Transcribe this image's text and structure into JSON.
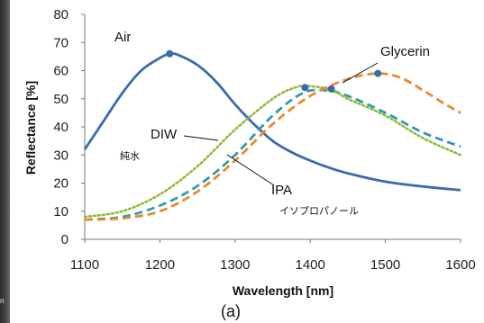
{
  "left_strip_text": "n",
  "chart_data": {
    "type": "line",
    "xlabel": "Wavelength [nm]",
    "ylabel": "Reflectance [%]",
    "xlim": [
      1100,
      1600
    ],
    "ylim": [
      0,
      80
    ],
    "x_ticks": [
      1100,
      1200,
      1300,
      1400,
      1500,
      1600
    ],
    "y_ticks": [
      0,
      10,
      20,
      30,
      40,
      50,
      60,
      70,
      80
    ],
    "grid": false,
    "legend": "none",
    "caption": "(a)",
    "series": [
      {
        "name": "Air",
        "color": "#3b6aae",
        "style": "solid",
        "x": [
          1100,
          1125,
          1150,
          1175,
          1200,
          1213,
          1225,
          1250,
          1275,
          1300,
          1325,
          1350,
          1375,
          1400,
          1425,
          1450,
          1500,
          1550,
          1600
        ],
        "y": [
          32,
          42,
          52,
          60,
          64.5,
          66,
          65.5,
          62,
          56,
          48,
          41,
          35,
          31,
          28,
          25.5,
          23.5,
          20.5,
          18.8,
          17.5
        ]
      },
      {
        "name": "DIW",
        "color": "#2e9bb5",
        "style": "dashed",
        "x": [
          1100,
          1150,
          1200,
          1250,
          1300,
          1350,
          1390,
          1420,
          1450,
          1500,
          1550,
          1600
        ],
        "y": [
          7,
          8,
          12,
          19,
          30,
          44,
          52,
          53,
          51,
          45,
          38,
          33
        ]
      },
      {
        "name": "IPA",
        "color": "#8fbc3a",
        "style": "dotted",
        "x": [
          1100,
          1150,
          1200,
          1250,
          1300,
          1350,
          1380,
          1400,
          1430,
          1450,
          1500,
          1550,
          1600
        ],
        "y": [
          8,
          10,
          16,
          26,
          39,
          50,
          54,
          54.5,
          53,
          50,
          44,
          36,
          30
        ]
      },
      {
        "name": "Glycerin",
        "color": "#e88a2e",
        "style": "dashed",
        "x": [
          1100,
          1150,
          1200,
          1250,
          1300,
          1350,
          1400,
          1450,
          1490,
          1520,
          1550,
          1580,
          1600
        ],
        "y": [
          7,
          7.5,
          10,
          17,
          28,
          41,
          51,
          57,
          59,
          57.5,
          53,
          48,
          45
        ]
      }
    ],
    "markers": [
      {
        "x": 1213,
        "y": 66,
        "color": "#3b6aae"
      },
      {
        "x": 1393,
        "y": 54,
        "color": "#3b6aae"
      },
      {
        "x": 1428,
        "y": 53.5,
        "color": "#3b6aae"
      },
      {
        "x": 1490,
        "y": 59,
        "color": "#3b6aae"
      }
    ],
    "annotations": {
      "air": "Air",
      "diw": "DIW",
      "diw_jp": "純水",
      "ipa": "IPA",
      "ipa_jp": "イソプロパノール",
      "glycerin": "Glycerin"
    }
  }
}
